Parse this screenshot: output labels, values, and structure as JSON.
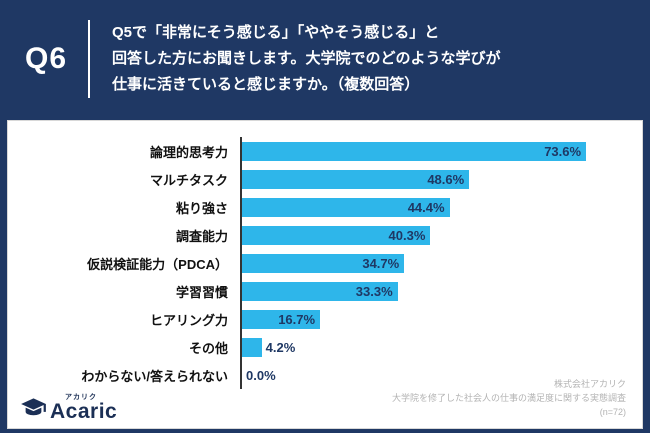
{
  "header": {
    "q_label": "Q6",
    "question": "Q5で「非常にそう感じる」「ややそう感じる」と\n回答した方にお聞きします。大学院でのどのような学びが\n仕事に活きていると感じますか。（複数回答）"
  },
  "chart_data": {
    "type": "bar",
    "orientation": "horizontal",
    "title": "",
    "categories": [
      "論理的思考力",
      "マルチタスク",
      "粘り強さ",
      "調査能力",
      "仮説検証能力（PDCA）",
      "学習習慣",
      "ヒアリング力",
      "その他",
      "わからない/答えられない"
    ],
    "values": [
      73.6,
      48.6,
      44.4,
      40.3,
      34.7,
      33.3,
      16.7,
      4.2,
      0.0
    ],
    "value_labels": [
      "73.6%",
      "48.6%",
      "44.4%",
      "40.3%",
      "34.7%",
      "33.3%",
      "16.7%",
      "4.2%",
      "0.0%"
    ],
    "xlim": [
      0,
      80
    ],
    "grid": false,
    "legend": false,
    "bar_color": "#2eb6ea",
    "value_label_color": "#1f3864"
  },
  "footer": {
    "company": "株式会社アカリク",
    "survey": "大学院を修了した社会人の仕事の満足度に関する実態調査",
    "sample": "(n=72)"
  },
  "logo": {
    "sub": "アカリク",
    "word": "Acaric"
  },
  "colors": {
    "background_navy": "#1f3864",
    "panel_white": "#ffffff",
    "bar_blue": "#2eb6ea",
    "label_navy": "#1f3864"
  }
}
